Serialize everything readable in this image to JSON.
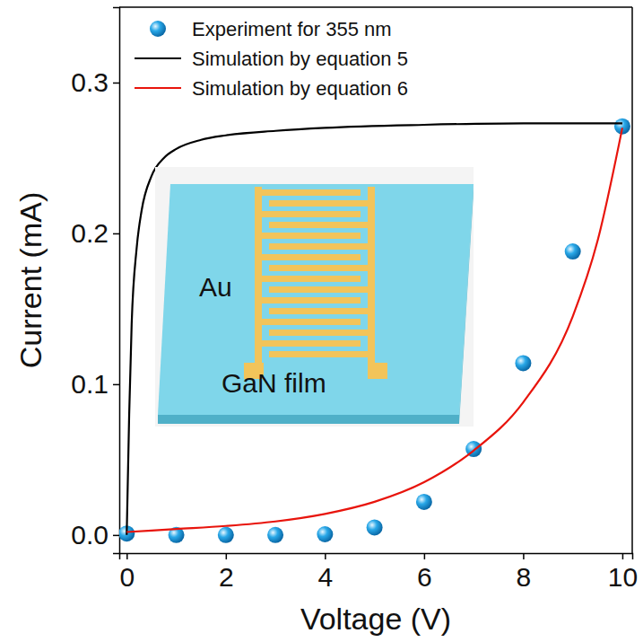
{
  "chart_data": {
    "type": "scatter",
    "x_label": "Voltage (V)",
    "y_label": "Current (mA)",
    "xlim": [
      -0.15,
      10.2
    ],
    "ylim": [
      -0.012,
      0.35
    ],
    "xticks": [
      0,
      2,
      4,
      6,
      8,
      10
    ],
    "yticks": [
      {
        "value": 0,
        "label": "0.0"
      },
      0.1,
      0.2,
      0.3
    ],
    "legend": "upper left",
    "annotations": [
      "Au",
      "GaN film"
    ],
    "series": [
      {
        "name": "Experiment for 355 nm",
        "type": "scatter",
        "marker": "circle",
        "color": "#29a8e8",
        "x": [
          0,
          1,
          2,
          3,
          4,
          5,
          6,
          7,
          8,
          9,
          10
        ],
        "values": [
          0.001,
          0.0,
          0.0,
          0.0,
          0.0005,
          0.005,
          0.022,
          0.057,
          0.114,
          0.188,
          0.271
        ]
      },
      {
        "name": "Simulation by equation 5",
        "type": "line",
        "line_style": "solid",
        "color": "#000000",
        "x": [
          0,
          0.05,
          0.1,
          0.2,
          0.3,
          0.5,
          0.75,
          1,
          1.5,
          2,
          3,
          4,
          6,
          8,
          10
        ],
        "values": [
          0,
          0.08,
          0.14,
          0.19,
          0.215,
          0.238,
          0.25,
          0.256,
          0.262,
          0.265,
          0.268,
          0.27,
          0.272,
          0.273,
          0.273
        ]
      },
      {
        "name": "Simulation by equation 6",
        "type": "line",
        "line_style": "solid",
        "color": "#e8140c",
        "x": [
          0,
          1,
          2,
          3,
          4,
          5,
          6,
          7,
          8,
          9,
          9.5,
          10
        ],
        "values": [
          0.002,
          0.004,
          0.006,
          0.009,
          0.014,
          0.022,
          0.035,
          0.056,
          0.088,
          0.145,
          0.195,
          0.27
        ]
      }
    ]
  }
}
